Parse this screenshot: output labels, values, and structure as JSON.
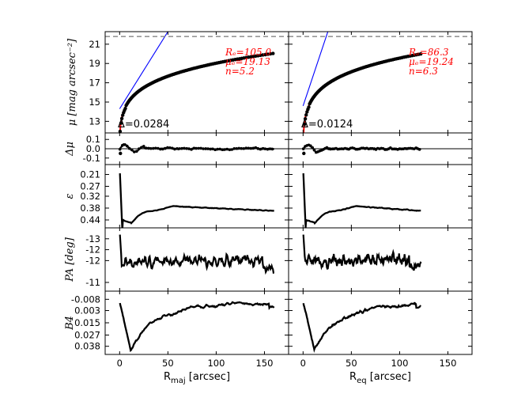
{
  "chart_data": {
    "type": "line",
    "columns": [
      {
        "name": "major-axis",
        "xlabel_main": "R",
        "xlabel_sub": "maj",
        "xlabel_rest": " [arcsec]",
        "xlim": [
          -15,
          175
        ],
        "xticks": [
          "0",
          "50",
          "100",
          "150"
        ],
        "annotations": {
          "re": "Rₑ=105.0",
          "mue": "μₑ=19.13",
          "n": "n=5.2",
          "delta": "Δ=0.0284"
        },
        "sersic": {
          "re": 105.0,
          "mue": 19.13,
          "n": 5.2
        },
        "rmax": 160
      },
      {
        "name": "equivalent-axis",
        "xlabel_main": "R",
        "xlabel_sub": "eq",
        "xlabel_rest": " [arcsec]",
        "xlim": [
          -15,
          175
        ],
        "xticks": [
          "0",
          "50",
          "100",
          "150"
        ],
        "annotations": {
          "re": "Rₑ=86.3",
          "mue": "μₑ=19.24",
          "n": "n=6.3",
          "delta": "Δ=0.0124"
        },
        "sersic": {
          "re": 86.3,
          "mue": 19.24,
          "n": 6.3
        },
        "rmax": 122
      }
    ],
    "rows": [
      {
        "name": "mu",
        "ylabel": "μ [mag arcsec⁻²]",
        "ylim": [
          22.3,
          11.8
        ],
        "yticks": [
          {
            "value": 13,
            "label": "13"
          },
          {
            "value": 15,
            "label": "15"
          },
          {
            "value": 17,
            "label": "17"
          },
          {
            "value": 19,
            "label": "19"
          },
          {
            "value": 21,
            "label": "21"
          }
        ],
        "dashed_limit": 21.8
      },
      {
        "name": "delta-mu",
        "ylabel": "Δμ",
        "ylim": [
          0.17,
          -0.17
        ],
        "yticks": [
          {
            "value": -0.1,
            "label": "-0.1"
          },
          {
            "value": 0.0,
            "label": "0.0"
          },
          {
            "value": 0.1,
            "label": "0.1"
          }
        ]
      },
      {
        "name": "ellipticity",
        "ylabel": "ε",
        "ylim": [
          0.16,
          0.48
        ],
        "yticks": [
          {
            "value": 0.44,
            "label": "0.44"
          },
          {
            "value": 0.38,
            "label": "0.38"
          },
          {
            "value": 0.32,
            "label": "0.32"
          },
          {
            "value": 0.27,
            "label": "0.27"
          },
          {
            "value": 0.21,
            "label": "0.21"
          }
        ]
      },
      {
        "name": "position-angle",
        "ylabel": "PA [deg]",
        "ylim": [
          -13.5,
          -10.6
        ],
        "yticks": [
          {
            "value": -11,
            "label": "-11"
          },
          {
            "value": -12,
            "label": "-12"
          },
          {
            "value": -12.5,
            "label": "-12"
          },
          {
            "value": -13,
            "label": "-13"
          }
        ]
      },
      {
        "name": "b4",
        "ylabel": "B4",
        "ylim": [
          -0.016,
          0.046
        ],
        "yticks": [
          {
            "value": 0.038,
            "label": "0.038"
          },
          {
            "value": 0.027,
            "label": "0.027"
          },
          {
            "value": 0.015,
            "label": "0.015"
          },
          {
            "value": 0.003,
            "label": "0.003"
          },
          {
            "value": -0.008,
            "label": "-0.008"
          }
        ]
      }
    ],
    "colors": {
      "data": "#000000",
      "sersic_fit": "#ff0000",
      "inner_fit": "#0000ff",
      "dashed": "#777777"
    }
  }
}
